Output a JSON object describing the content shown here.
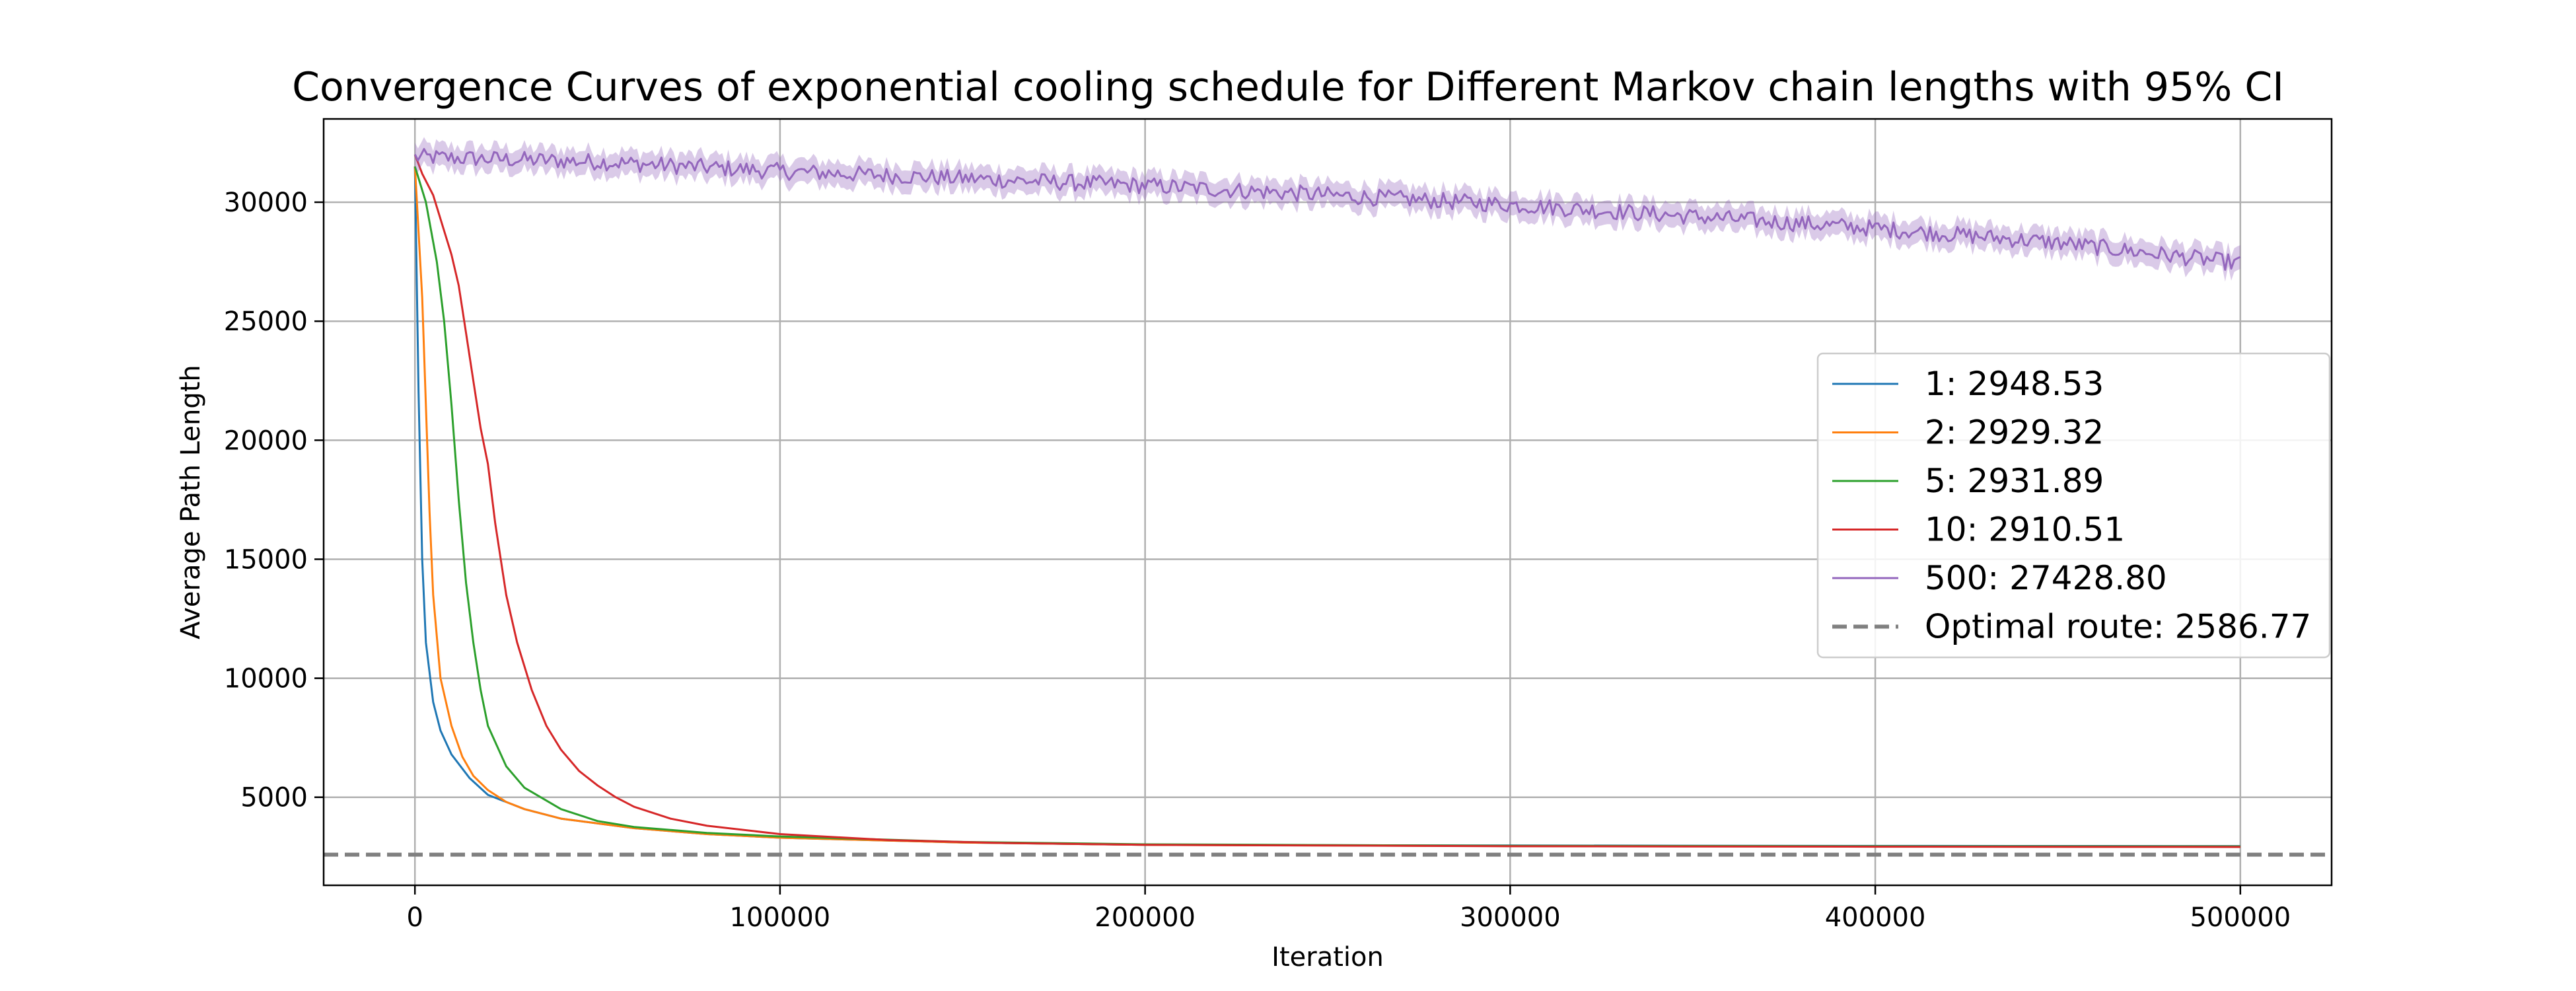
{
  "chart_data": {
    "type": "line",
    "title": "Convergence Curves of exponential cooling schedule for Different Markov chain lengths with 95% CI",
    "xlabel": "Iteration",
    "ylabel": "Average Path Length",
    "xlim": [
      -25000,
      525000
    ],
    "ylim": [
      1300,
      33500
    ],
    "xticks": [
      0,
      100000,
      200000,
      300000,
      400000,
      500000
    ],
    "xtick_labels": [
      "0",
      "100000",
      "200000",
      "300000",
      "400000",
      "500000"
    ],
    "yticks": [
      5000,
      10000,
      15000,
      20000,
      25000,
      30000
    ],
    "ytick_labels": [
      "5000",
      "10000",
      "15000",
      "20000",
      "25000",
      "30000"
    ],
    "grid": true,
    "legend_position": "center-right",
    "series": [
      {
        "name": "1: 2948.53",
        "color": "#1f77b4",
        "x": [
          0,
          1000,
          2000,
          3000,
          5000,
          7000,
          10000,
          15000,
          20000,
          30000,
          40000,
          60000,
          80000,
          100000,
          150000,
          200000,
          300000,
          400000,
          500000
        ],
        "y": [
          31500,
          22000,
          15000,
          11500,
          9000,
          7800,
          6800,
          5800,
          5100,
          4500,
          4100,
          3700,
          3450,
          3300,
          3100,
          3000,
          2970,
          2955,
          2948.53
        ]
      },
      {
        "name": "2: 2929.32",
        "color": "#ff7f0e",
        "x": [
          0,
          2000,
          4000,
          5000,
          7000,
          10000,
          13000,
          16000,
          20000,
          25000,
          30000,
          40000,
          60000,
          80000,
          100000,
          150000,
          200000,
          300000,
          400000,
          500000
        ],
        "y": [
          31500,
          26000,
          17000,
          13500,
          10000,
          8000,
          6700,
          5900,
          5300,
          4800,
          4500,
          4100,
          3700,
          3450,
          3300,
          3100,
          3000,
          2950,
          2935,
          2929.32
        ]
      },
      {
        "name": "5: 2931.89",
        "color": "#2ca02c",
        "x": [
          0,
          3000,
          6000,
          8000,
          10000,
          12000,
          14000,
          16000,
          18000,
          20000,
          25000,
          30000,
          40000,
          50000,
          60000,
          80000,
          100000,
          150000,
          200000,
          300000,
          400000,
          500000
        ],
        "y": [
          31500,
          30000,
          27500,
          25000,
          21500,
          17500,
          14000,
          11500,
          9500,
          8000,
          6300,
          5400,
          4500,
          4000,
          3750,
          3500,
          3350,
          3120,
          3020,
          2960,
          2940,
          2931.89
        ]
      },
      {
        "name": "10: 2910.51",
        "color": "#d62728",
        "x": [
          0,
          2000,
          5000,
          8000,
          10000,
          12000,
          14000,
          16000,
          18000,
          20000,
          22000,
          25000,
          28000,
          32000,
          36000,
          40000,
          45000,
          50000,
          55000,
          60000,
          70000,
          80000,
          100000,
          130000,
          160000,
          200000,
          300000,
          400000,
          500000
        ],
        "y": [
          32000,
          31200,
          30300,
          28800,
          27800,
          26500,
          24500,
          22500,
          20500,
          19000,
          16500,
          13500,
          11500,
          9500,
          8000,
          7000,
          6100,
          5500,
          5000,
          4600,
          4100,
          3800,
          3450,
          3200,
          3080,
          3000,
          2940,
          2920,
          2910.51
        ]
      },
      {
        "name": "500: 27428.80",
        "color": "#9467bd",
        "x": [
          0,
          50000,
          100000,
          150000,
          200000,
          250000,
          300000,
          350000,
          400000,
          450000,
          500000
        ],
        "y": [
          31900,
          31700,
          31300,
          31000,
          30700,
          30300,
          29900,
          29400,
          28900,
          28300,
          27428.8
        ],
        "ci": 500
      }
    ],
    "optimal": {
      "name": "Optimal route: 2586.77",
      "value": 2586.77,
      "color": "#808080"
    }
  }
}
